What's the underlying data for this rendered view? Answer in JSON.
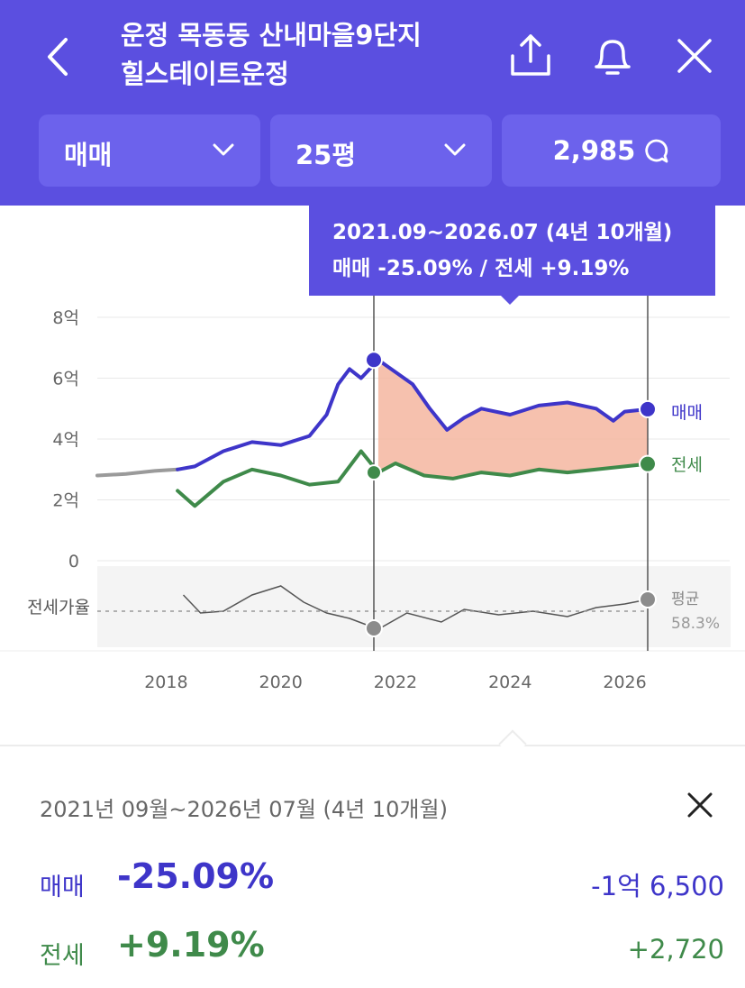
{
  "header": {
    "title_line1": "운정 목동동 산내마을9단지",
    "title_line2": "힐스테이트운정",
    "icons": [
      "back-icon",
      "share-icon",
      "bell-icon",
      "close-icon"
    ]
  },
  "filters": {
    "trade_type": "매매",
    "size": "25평",
    "count": "2,985"
  },
  "tooltip": {
    "line1": "2021.09~2026.07 (4년 10개월)",
    "line2": "매매 -25.09%  /  전세 +9.19%"
  },
  "chart_data": {
    "type": "line",
    "y_ticks": [
      "8억",
      "6억",
      "4억",
      "2억",
      "0"
    ],
    "x_ticks": [
      "2018",
      "2020",
      "2022",
      "2024",
      "2026"
    ],
    "ylim": [
      0,
      8
    ],
    "series": [
      {
        "name": "매매",
        "color": "#3e35c9",
        "x": [
          2016.8,
          2017.5,
          2018.2,
          2018.5,
          2019.0,
          2019.5,
          2020.0,
          2020.5,
          2020.8,
          2021.0,
          2021.2,
          2021.4,
          2021.7,
          2022.0,
          2022.3,
          2022.6,
          2022.9,
          2023.2,
          2023.5,
          2024.0,
          2024.5,
          2025.0,
          2025.5,
          2025.8,
          2026.0,
          2026.5
        ],
        "y": [
          2.8,
          2.9,
          3.0,
          3.1,
          3.6,
          3.9,
          3.8,
          4.1,
          4.8,
          5.8,
          6.3,
          6.0,
          6.6,
          6.2,
          5.8,
          5.0,
          4.3,
          4.7,
          5.0,
          4.8,
          5.1,
          5.2,
          5.0,
          4.6,
          4.9,
          5.0
        ]
      },
      {
        "name": "전세",
        "color": "#3f8a4a",
        "x": [
          2018.2,
          2018.5,
          2019.0,
          2019.5,
          2020.0,
          2020.5,
          2021.0,
          2021.4,
          2021.7,
          2022.0,
          2022.5,
          2023.0,
          2023.5,
          2024.0,
          2024.5,
          2025.0,
          2025.5,
          2026.0,
          2026.5
        ],
        "y": [
          2.3,
          1.8,
          2.6,
          3.0,
          2.8,
          2.5,
          2.6,
          3.6,
          2.9,
          3.2,
          2.8,
          2.7,
          2.9,
          2.8,
          3.0,
          2.9,
          3.0,
          3.1,
          3.2
        ]
      }
    ],
    "highlight_range": [
      "2021.09",
      "2026.07"
    ],
    "end_labels": {
      "sale": "매매",
      "jeonse": "전세"
    },
    "ratio_label": "전세가율",
    "ratio_avg_label": "평균",
    "ratio_avg_value": "58.3%"
  },
  "summary": {
    "period": "2021년 09월~2026년 07월 (4년 10개월)",
    "sale_label": "매매",
    "sale_pct": "-25.09%",
    "sale_amount": "-1억 6,500",
    "jeonse_label": "전세",
    "jeonse_pct": "+9.19%",
    "jeonse_amount": "+2,720"
  },
  "colors": {
    "header_bg": "#5b4fe0",
    "sale": "#3e35c9",
    "jeonse": "#3f8a4a",
    "fill": "#f4b6a0"
  }
}
